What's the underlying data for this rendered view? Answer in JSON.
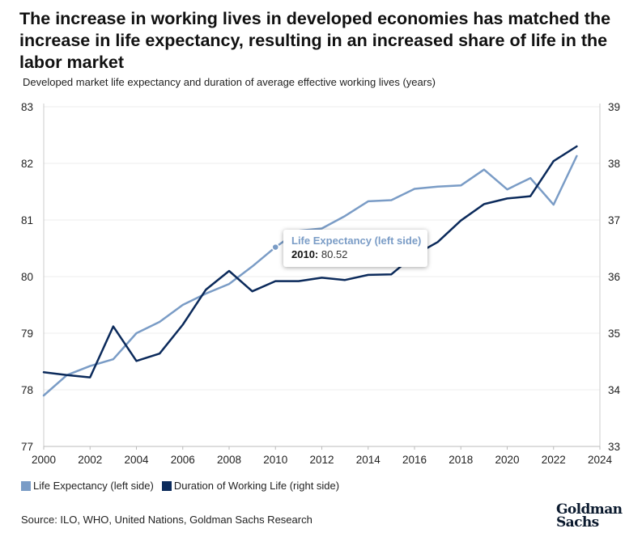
{
  "title": "The increase in working lives in developed economies has matched the increase in life expectancy, resulting in an increased share of life in the labor market",
  "subtitle": "Developed market life expectancy and duration of average effective working lives (years)",
  "source": "Source: ILO, WHO, United Nations, Goldman Sachs Research",
  "logo": {
    "line1": "Goldman",
    "line2": "Sachs"
  },
  "colors": {
    "life_expectancy": "#7a9cc6",
    "working_life": "#0b2a5b",
    "axis": "#cccccc"
  },
  "legend": [
    {
      "label": "Life Expectancy (left side)",
      "color": "#7a9cc6"
    },
    {
      "label": "Duration of Working Life (right side)",
      "color": "#0b2a5b"
    }
  ],
  "tooltip": {
    "series": "Life Expectancy (left side)",
    "year": "2010:",
    "value": "80.52"
  },
  "chart_data": {
    "type": "line",
    "title": "The increase in working lives in developed economies has matched the increase in life expectancy, resulting in an increased share of life in the labor market",
    "subtitle": "Developed market life expectancy and duration of average effective working lives (years)",
    "x": [
      2000,
      2001,
      2002,
      2003,
      2004,
      2005,
      2006,
      2007,
      2008,
      2009,
      2010,
      2011,
      2012,
      2013,
      2014,
      2015,
      2016,
      2017,
      2018,
      2019,
      2020,
      2021,
      2022,
      2023
    ],
    "xlim": [
      2000,
      2024
    ],
    "xticks": [
      "2000",
      "2002",
      "2004",
      "2006",
      "2008",
      "2010",
      "2012",
      "2014",
      "2016",
      "2018",
      "2020",
      "2022",
      "2024"
    ],
    "y_left_lim": [
      77,
      83
    ],
    "y_left_ticks": [
      "77",
      "78",
      "79",
      "80",
      "81",
      "82",
      "83"
    ],
    "y_right_lim": [
      33,
      39
    ],
    "y_right_ticks": [
      "33",
      "34",
      "35",
      "36",
      "37",
      "38",
      "39"
    ],
    "grid": "horizontal",
    "series": [
      {
        "name": "Life Expectancy (left side)",
        "axis": "left",
        "values": [
          77.9,
          78.26,
          78.42,
          78.54,
          79.0,
          79.2,
          79.5,
          79.7,
          79.87,
          80.18,
          80.52,
          80.81,
          80.85,
          81.07,
          81.33,
          81.35,
          81.55,
          81.59,
          81.61,
          81.89,
          81.54,
          81.74,
          81.27,
          82.13
        ]
      },
      {
        "name": "Duration of Working Life (right side)",
        "axis": "right",
        "values": [
          34.31,
          34.26,
          34.22,
          35.12,
          34.51,
          34.64,
          35.15,
          35.77,
          36.1,
          35.74,
          35.92,
          35.92,
          35.98,
          35.94,
          36.03,
          36.04,
          36.38,
          36.61,
          36.99,
          37.28,
          37.38,
          37.42,
          38.04,
          38.3
        ]
      }
    ]
  }
}
